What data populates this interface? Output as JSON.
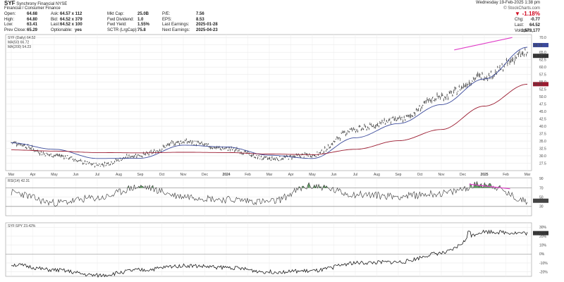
{
  "header": {
    "symbol": "SYF",
    "name": "Synchrony Financial",
    "exchange": "NYSE",
    "sector": "Financial / Consumer Finance",
    "col1": [
      {
        "label": "Open:",
        "value": "64.68"
      },
      {
        "label": "High:",
        "value": "64.80"
      },
      {
        "label": "Low:",
        "value": "63.41"
      },
      {
        "label": "Prev Close:",
        "value": "65.29"
      }
    ],
    "col2": [
      {
        "label": "Ask:",
        "value": "64.57 x 112"
      },
      {
        "label": "Bid:",
        "value": "64.52 x 379"
      },
      {
        "label": "Last:",
        "value": "64.52 x 100"
      },
      {
        "label": "Optionable:",
        "value": "yes"
      }
    ],
    "col3": [
      {
        "label": "Mkt Cap:",
        "value": "25.0B"
      },
      {
        "label": "Fwd Dividend:",
        "value": "1.0"
      },
      {
        "label": "Fwd Yield:",
        "value": "1.55%"
      },
      {
        "label": "SCTR (LrgCap):",
        "value": "75.8"
      }
    ],
    "col4": [
      {
        "label": "P/E:",
        "value": "7.56"
      },
      {
        "label": "EPS:",
        "value": "8.53"
      },
      {
        "label": "Last Earnings:",
        "value": "2025-01-28"
      },
      {
        "label": "Next Earnings:",
        "value": "2025-04-23"
      }
    ],
    "date": "Wednesday 19-Feb-2025 1:38 pm",
    "watermark": "© StockCharts.com",
    "change_pct": "-1.18%",
    "change_label": "Chg:",
    "change_value": "-0.77",
    "last_label": "Last:",
    "last_value": "64.52",
    "volume_label": "Volume:",
    "volume_value": "1,578,177"
  },
  "colors": {
    "price": "#111111",
    "ma50": "#3b4a9c",
    "ma200": "#9b1b30",
    "trendline": "#e040c8",
    "rsi_fill": "#2e7d32",
    "rsi_line": "#333333",
    "ratio": "#111111"
  },
  "chart_data": [
    {
      "type": "line",
      "panel": "price",
      "legend": [
        "SYF (Daily) 64.52",
        "MA(50) 66.72",
        "MA(200) 54.23"
      ],
      "x_ticks": [
        "Mar",
        "Apr",
        "May",
        "Jun",
        "Jul",
        "Aug",
        "Sep",
        "Oct",
        "Nov",
        "Dec",
        "2024",
        "Feb",
        "Mar",
        "Apr",
        "May",
        "Jun",
        "Jul",
        "Aug",
        "Sep",
        "Oct",
        "Nov",
        "Dec",
        "2025",
        "Feb",
        "Mar"
      ],
      "y_ticks": [
        "27.5",
        "30.0",
        "32.5",
        "35.0",
        "37.5",
        "40.0",
        "42.5",
        "45.0",
        "47.5",
        "50.0",
        "52.5",
        "55.0",
        "57.5",
        "60.0",
        "62.5",
        "65.0",
        "67.5",
        "70.0"
      ],
      "ylim": [
        25,
        71
      ],
      "last_labels": [
        "66.72",
        "64.52",
        "54.23"
      ],
      "series": [
        {
          "name": "SYF (Daily) 64.52",
          "x": [
            0,
            2,
            4,
            6,
            8,
            10,
            12,
            14,
            16,
            18,
            20,
            22,
            24
          ],
          "values": [
            34.5,
            30.2,
            27.0,
            30.3,
            34.8,
            32.4,
            29.0,
            30.3,
            39.0,
            42.2,
            50.0,
            57.0,
            64.5
          ]
        },
        {
          "name": "MA(50) 66.72",
          "x": [
            0,
            2,
            4,
            6,
            8,
            10,
            12,
            14,
            16,
            18,
            20,
            22,
            24
          ],
          "values": [
            34.4,
            32.2,
            29.1,
            29.2,
            33.6,
            33.0,
            30.2,
            29.1,
            36.1,
            40.9,
            47.3,
            56.0,
            66.7
          ]
        },
        {
          "name": "MA(200) 54.23",
          "x": [
            0,
            2,
            4,
            6,
            8,
            10,
            12,
            14,
            16,
            18,
            20,
            22,
            24
          ],
          "values": [
            32.0,
            31.6,
            31.1,
            31.0,
            31.2,
            31.1,
            30.6,
            30.4,
            32.2,
            35.1,
            38.9,
            46.8,
            54.2
          ]
        }
      ]
    },
    {
      "type": "line",
      "panel": "rsi",
      "legend": [
        "RSI(14) 42.31"
      ],
      "y_ticks": [
        "10",
        "30",
        "50",
        "70",
        "90"
      ],
      "ylim": [
        10,
        92
      ],
      "last_labels": [
        "42.31"
      ],
      "series": [
        {
          "name": "RSI(14) 42.31",
          "x": [
            0,
            2,
            4,
            6,
            8,
            10,
            12,
            14,
            16,
            18,
            20,
            22,
            24
          ],
          "values": [
            60,
            38,
            48,
            72,
            52,
            45,
            40,
            74,
            56,
            52,
            58,
            78,
            42.3
          ]
        }
      ]
    },
    {
      "type": "line",
      "panel": "ratio",
      "legend": [
        "SYF:SPY 23.42%"
      ],
      "y_ticks": [
        "-20%",
        "-10%",
        "0%",
        "10%",
        "20%",
        "30%"
      ],
      "ylim": [
        -25,
        35
      ],
      "last_labels": [
        "23.42%"
      ],
      "series": [
        {
          "name": "SYF:SPY 23.42%",
          "x": [
            0,
            2,
            4,
            6,
            8,
            10,
            12,
            14,
            16,
            18,
            20,
            22,
            24
          ],
          "values": [
            -12,
            -18,
            -24,
            -18,
            -13,
            -15,
            -20,
            -19,
            -10,
            -9,
            1,
            25,
            23.4
          ]
        }
      ]
    }
  ]
}
